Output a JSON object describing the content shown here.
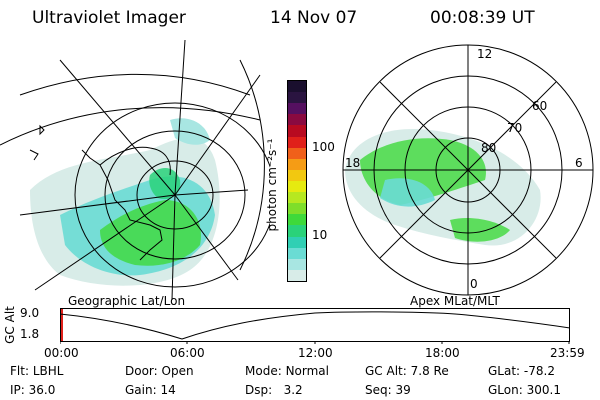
{
  "header": {
    "instrument": "Ultraviolet Imager",
    "date": "14 Nov 07",
    "time": "00:08:39 UT"
  },
  "colorbar": {
    "label": "photon cm⁻²s⁻¹",
    "ticks": [
      "100",
      "10"
    ],
    "colors": [
      "#1a0f2e",
      "#2a1440",
      "#551060",
      "#8a0a40",
      "#b80a20",
      "#e0201a",
      "#f0601a",
      "#f59c15",
      "#f2c810",
      "#e6ea10",
      "#b6e820",
      "#7ede2a",
      "#3ed93a",
      "#2ad27a",
      "#30cfb4",
      "#6adcd4",
      "#a8e6e2",
      "#d8ece8"
    ]
  },
  "maps": {
    "left_label": "Geographic Lat/Lon",
    "right_label": "Apex MLat/MLT",
    "polar_labels": {
      "top": "12",
      "left": "18",
      "right": "6",
      "bottom": "0",
      "lat60": "60",
      "lat70": "70",
      "lat80": "80"
    }
  },
  "altitude_plot": {
    "ylabel": "GC Alt",
    "yticks": [
      "9.0",
      "1.8"
    ],
    "xticks": [
      "00:00",
      "06:00",
      "12:00",
      "18:00",
      "23:59"
    ]
  },
  "info": {
    "row1": [
      {
        "label": "Flt:",
        "value": "LBHL"
      },
      {
        "label": "Door:",
        "value": "Open"
      },
      {
        "label": "Mode:",
        "value": "Normal"
      },
      {
        "label": "GC Alt:",
        "value": "7.8 Re"
      },
      {
        "label": "GLat:",
        "value": "-78.2"
      }
    ],
    "row2": [
      {
        "label": "IP:",
        "value": "36.0"
      },
      {
        "label": "Gain:",
        "value": "14"
      },
      {
        "label": "Dsp:",
        "value": "3.2"
      },
      {
        "label": "Seq:",
        "value": "39"
      },
      {
        "label": "GLon:",
        "value": "300.1"
      }
    ]
  }
}
